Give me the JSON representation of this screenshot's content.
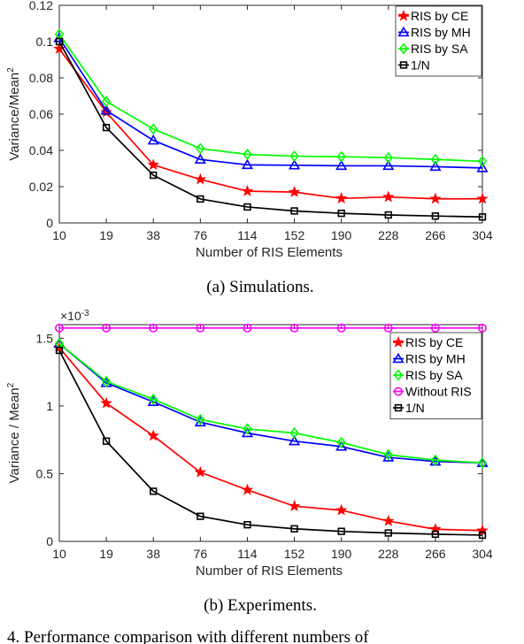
{
  "chart_data": [
    {
      "type": "line",
      "xlabel": "Number of RIS Elements",
      "ylabel": "Variance/Mean",
      "ylabel_sup": "2",
      "x": [
        "10",
        "19",
        "38",
        "76",
        "114",
        "152",
        "190",
        "228",
        "266",
        "304"
      ],
      "ylim": [
        0,
        0.12
      ],
      "yticks": [
        "0",
        "0.02",
        "0.04",
        "0.06",
        "0.08",
        "0.1",
        "0.12"
      ],
      "exponent": "",
      "legend_position": "top-right",
      "grid": false,
      "caption": "(a)  Simulations.",
      "series": [
        {
          "name": "RIS by CE",
          "color": "#ff0000",
          "marker": "star",
          "values": [
            0.096,
            0.061,
            0.032,
            0.024,
            0.0175,
            0.017,
            0.0135,
            0.0143,
            0.0133,
            0.0133
          ]
        },
        {
          "name": "RIS by MH",
          "color": "#0000ff",
          "marker": "triangle",
          "values": [
            0.102,
            0.062,
            0.0455,
            0.035,
            0.032,
            0.0318,
            0.0315,
            0.0315,
            0.031,
            0.0303
          ]
        },
        {
          "name": "RIS by SA",
          "color": "#00ff00",
          "marker": "diamond",
          "values": [
            0.104,
            0.067,
            0.0518,
            0.041,
            0.0378,
            0.0368,
            0.0365,
            0.036,
            0.035,
            0.034
          ]
        },
        {
          "name": "1/N",
          "color": "#000000",
          "marker": "square",
          "values": [
            0.1,
            0.0526,
            0.0263,
            0.0132,
            0.0088,
            0.0066,
            0.0053,
            0.0044,
            0.0038,
            0.0033
          ]
        }
      ]
    },
    {
      "type": "line",
      "xlabel": "Number of RIS Elements",
      "ylabel": "Variance / Mean",
      "ylabel_sup": "2",
      "x": [
        "10",
        "19",
        "38",
        "76",
        "114",
        "152",
        "190",
        "228",
        "266",
        "304"
      ],
      "ylim": [
        0,
        1.6
      ],
      "yticks": [
        "0",
        "0.5",
        "1",
        "1.5"
      ],
      "exponent": "×10",
      "exponent_sup": "-3",
      "legend_position": "top-right",
      "grid": false,
      "caption": "(b)  Experiments.",
      "series": [
        {
          "name": "RIS by CE",
          "color": "#ff0000",
          "marker": "star",
          "values": [
            1.43,
            1.02,
            0.78,
            0.51,
            0.38,
            0.26,
            0.23,
            0.15,
            0.09,
            0.08
          ]
        },
        {
          "name": "RIS by MH",
          "color": "#0000ff",
          "marker": "triangle",
          "values": [
            1.46,
            1.17,
            1.03,
            0.88,
            0.8,
            0.74,
            0.7,
            0.62,
            0.59,
            0.58
          ]
        },
        {
          "name": "RIS by SA",
          "color": "#00ff00",
          "marker": "diamond",
          "values": [
            1.46,
            1.18,
            1.05,
            0.9,
            0.83,
            0.8,
            0.73,
            0.64,
            0.6,
            0.58
          ]
        },
        {
          "name": "Without RIS",
          "color": "#ff00ff",
          "marker": "circle",
          "values": [
            1.575,
            1.575,
            1.575,
            1.575,
            1.575,
            1.575,
            1.575,
            1.575,
            1.575,
            1.575
          ]
        },
        {
          "name": "1/N",
          "color": "#000000",
          "marker": "square",
          "values": [
            1.41,
            0.74,
            0.37,
            0.185,
            0.123,
            0.093,
            0.074,
            0.062,
            0.053,
            0.046
          ]
        }
      ]
    }
  ],
  "footer_text": "4. Performance comparison with different numbers of"
}
